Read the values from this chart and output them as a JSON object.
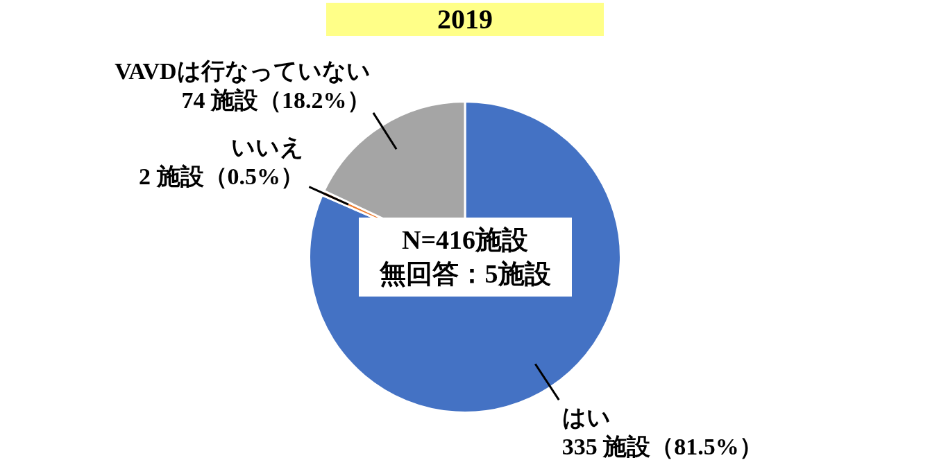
{
  "chart_data": {
    "type": "pie",
    "title": "2019",
    "categories": [
      "はい",
      "いいえ",
      "VAVDは行なっていない"
    ],
    "values": [
      335,
      2,
      74
    ],
    "value_labels": [
      "335 施設（81.5%）",
      "2 施設（0.5%）",
      "74 施設（18.2%）"
    ],
    "colors": [
      "#4472c4",
      "#ed7d31",
      "#a5a5a5"
    ],
    "legend": false,
    "annotations": [
      "N=416施設",
      "無回答：5施設"
    ]
  }
}
